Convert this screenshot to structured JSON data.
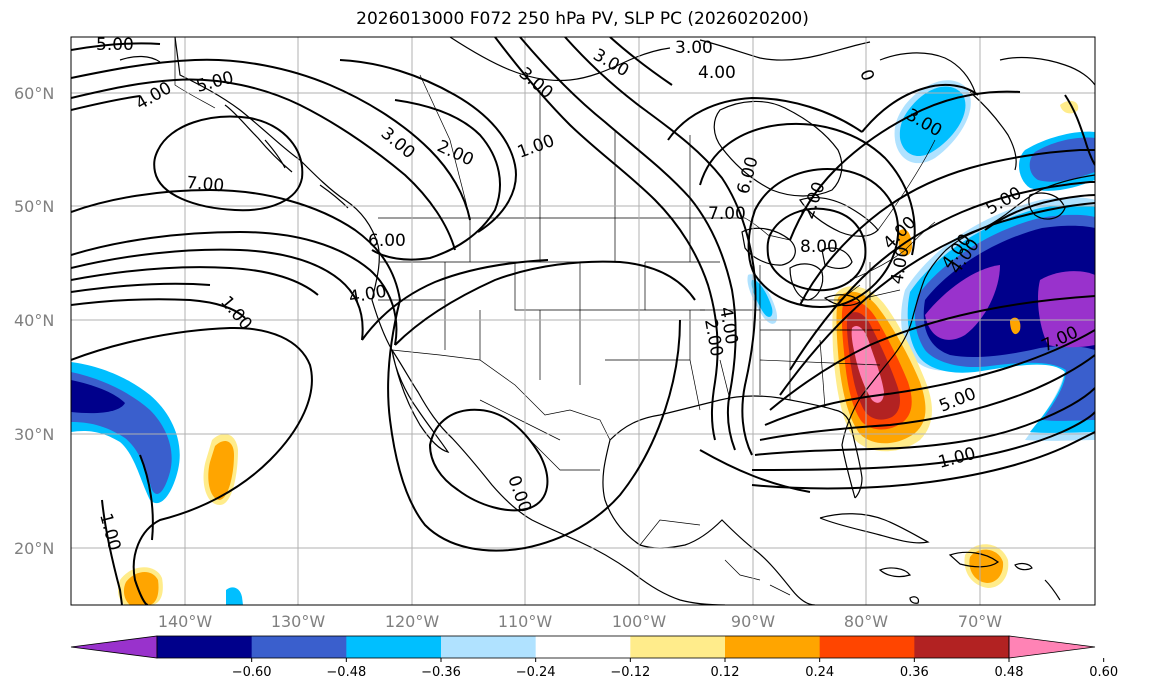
{
  "title": "2026013000 F072 250 hPa PV, SLP PC (2026020200)",
  "lat_labels": [
    "20°N",
    "30°N",
    "40°N",
    "50°N",
    "60°N"
  ],
  "lon_labels": [
    "140°W",
    "130°W",
    "120°W",
    "110°W",
    "100°W",
    "90°W",
    "80°W",
    "70°W"
  ],
  "colorbar": {
    "ticks": [
      "−0.60",
      "−0.48",
      "−0.36",
      "−0.24",
      "−0.12",
      "0.12",
      "0.24",
      "0.36",
      "0.48",
      "0.60"
    ],
    "colors": [
      "#9932cc",
      "#00008b",
      "#3a5fcd",
      "#00bfff",
      "#b0e2ff",
      "#ffffff",
      "#ffec8b",
      "#ffa500",
      "#ff4500",
      "#b22222",
      "#ff83b5"
    ]
  },
  "contour_labels": [
    "5.00",
    "4.00",
    "5.00",
    "7.00",
    "3.00",
    "2.00",
    "1.00",
    "3.00",
    "4.00",
    "3.00",
    "6.00",
    "4.00",
    "1.00",
    "6.00",
    "7.00",
    "2.00",
    "8.00",
    "4.00",
    "4.00",
    "3.00",
    "2.00",
    "4.00",
    "7.00",
    "5.00",
    "1.00",
    "1.00",
    "0.00",
    "3.00",
    "5.00",
    "4.00",
    "4.00",
    "0"
  ],
  "map": {
    "lon_range": [
      -150,
      -60
    ],
    "lat_range": [
      15,
      65
    ],
    "projection": "PlateCarree"
  }
}
